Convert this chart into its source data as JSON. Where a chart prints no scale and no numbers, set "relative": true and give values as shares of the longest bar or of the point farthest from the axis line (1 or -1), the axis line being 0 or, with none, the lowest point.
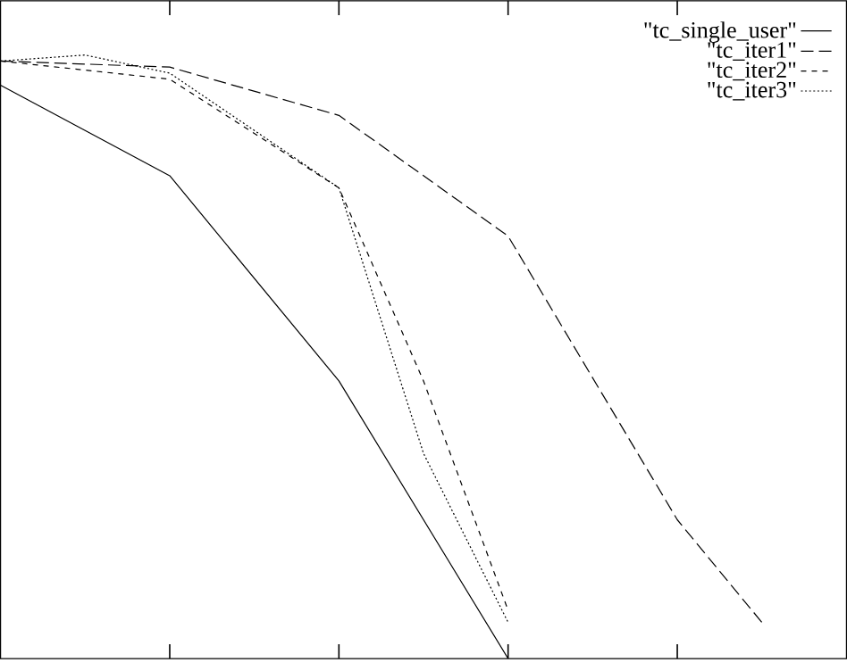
{
  "chart_data": {
    "type": "line",
    "relative": true,
    "categories": [
      null,
      null,
      null,
      null,
      null,
      null,
      null,
      null,
      null,
      null,
      null
    ],
    "legend": "top right",
    "series": [
      {
        "name": "\"tc_single_user\"",
        "color": "#000000",
        "line_style": "solid",
        "values": [
          0.95,
          null,
          0.8,
          null,
          0.46,
          null,
          0,
          null,
          null,
          null,
          null
        ]
      },
      {
        "name": "\"tc_iter1\"",
        "color": "#000000",
        "line_style": "dashed",
        "values": [
          0.99,
          null,
          0.98,
          null,
          0.9,
          null,
          0.7,
          null,
          0.23,
          0.06,
          null
        ]
      },
      {
        "name": "\"tc_iter2\"",
        "color": "#000000",
        "line_style": "dashed",
        "values": [
          0.99,
          null,
          0.96,
          null,
          0.78,
          0.46,
          0.08,
          null,
          null,
          null,
          null
        ]
      },
      {
        "name": "\"tc_iter3\"",
        "color": "#000000",
        "line_style": "dotted",
        "values": [
          0.99,
          1.0,
          0.97,
          null,
          0.78,
          0.34,
          0.06,
          null,
          null,
          null,
          null
        ]
      }
    ]
  }
}
